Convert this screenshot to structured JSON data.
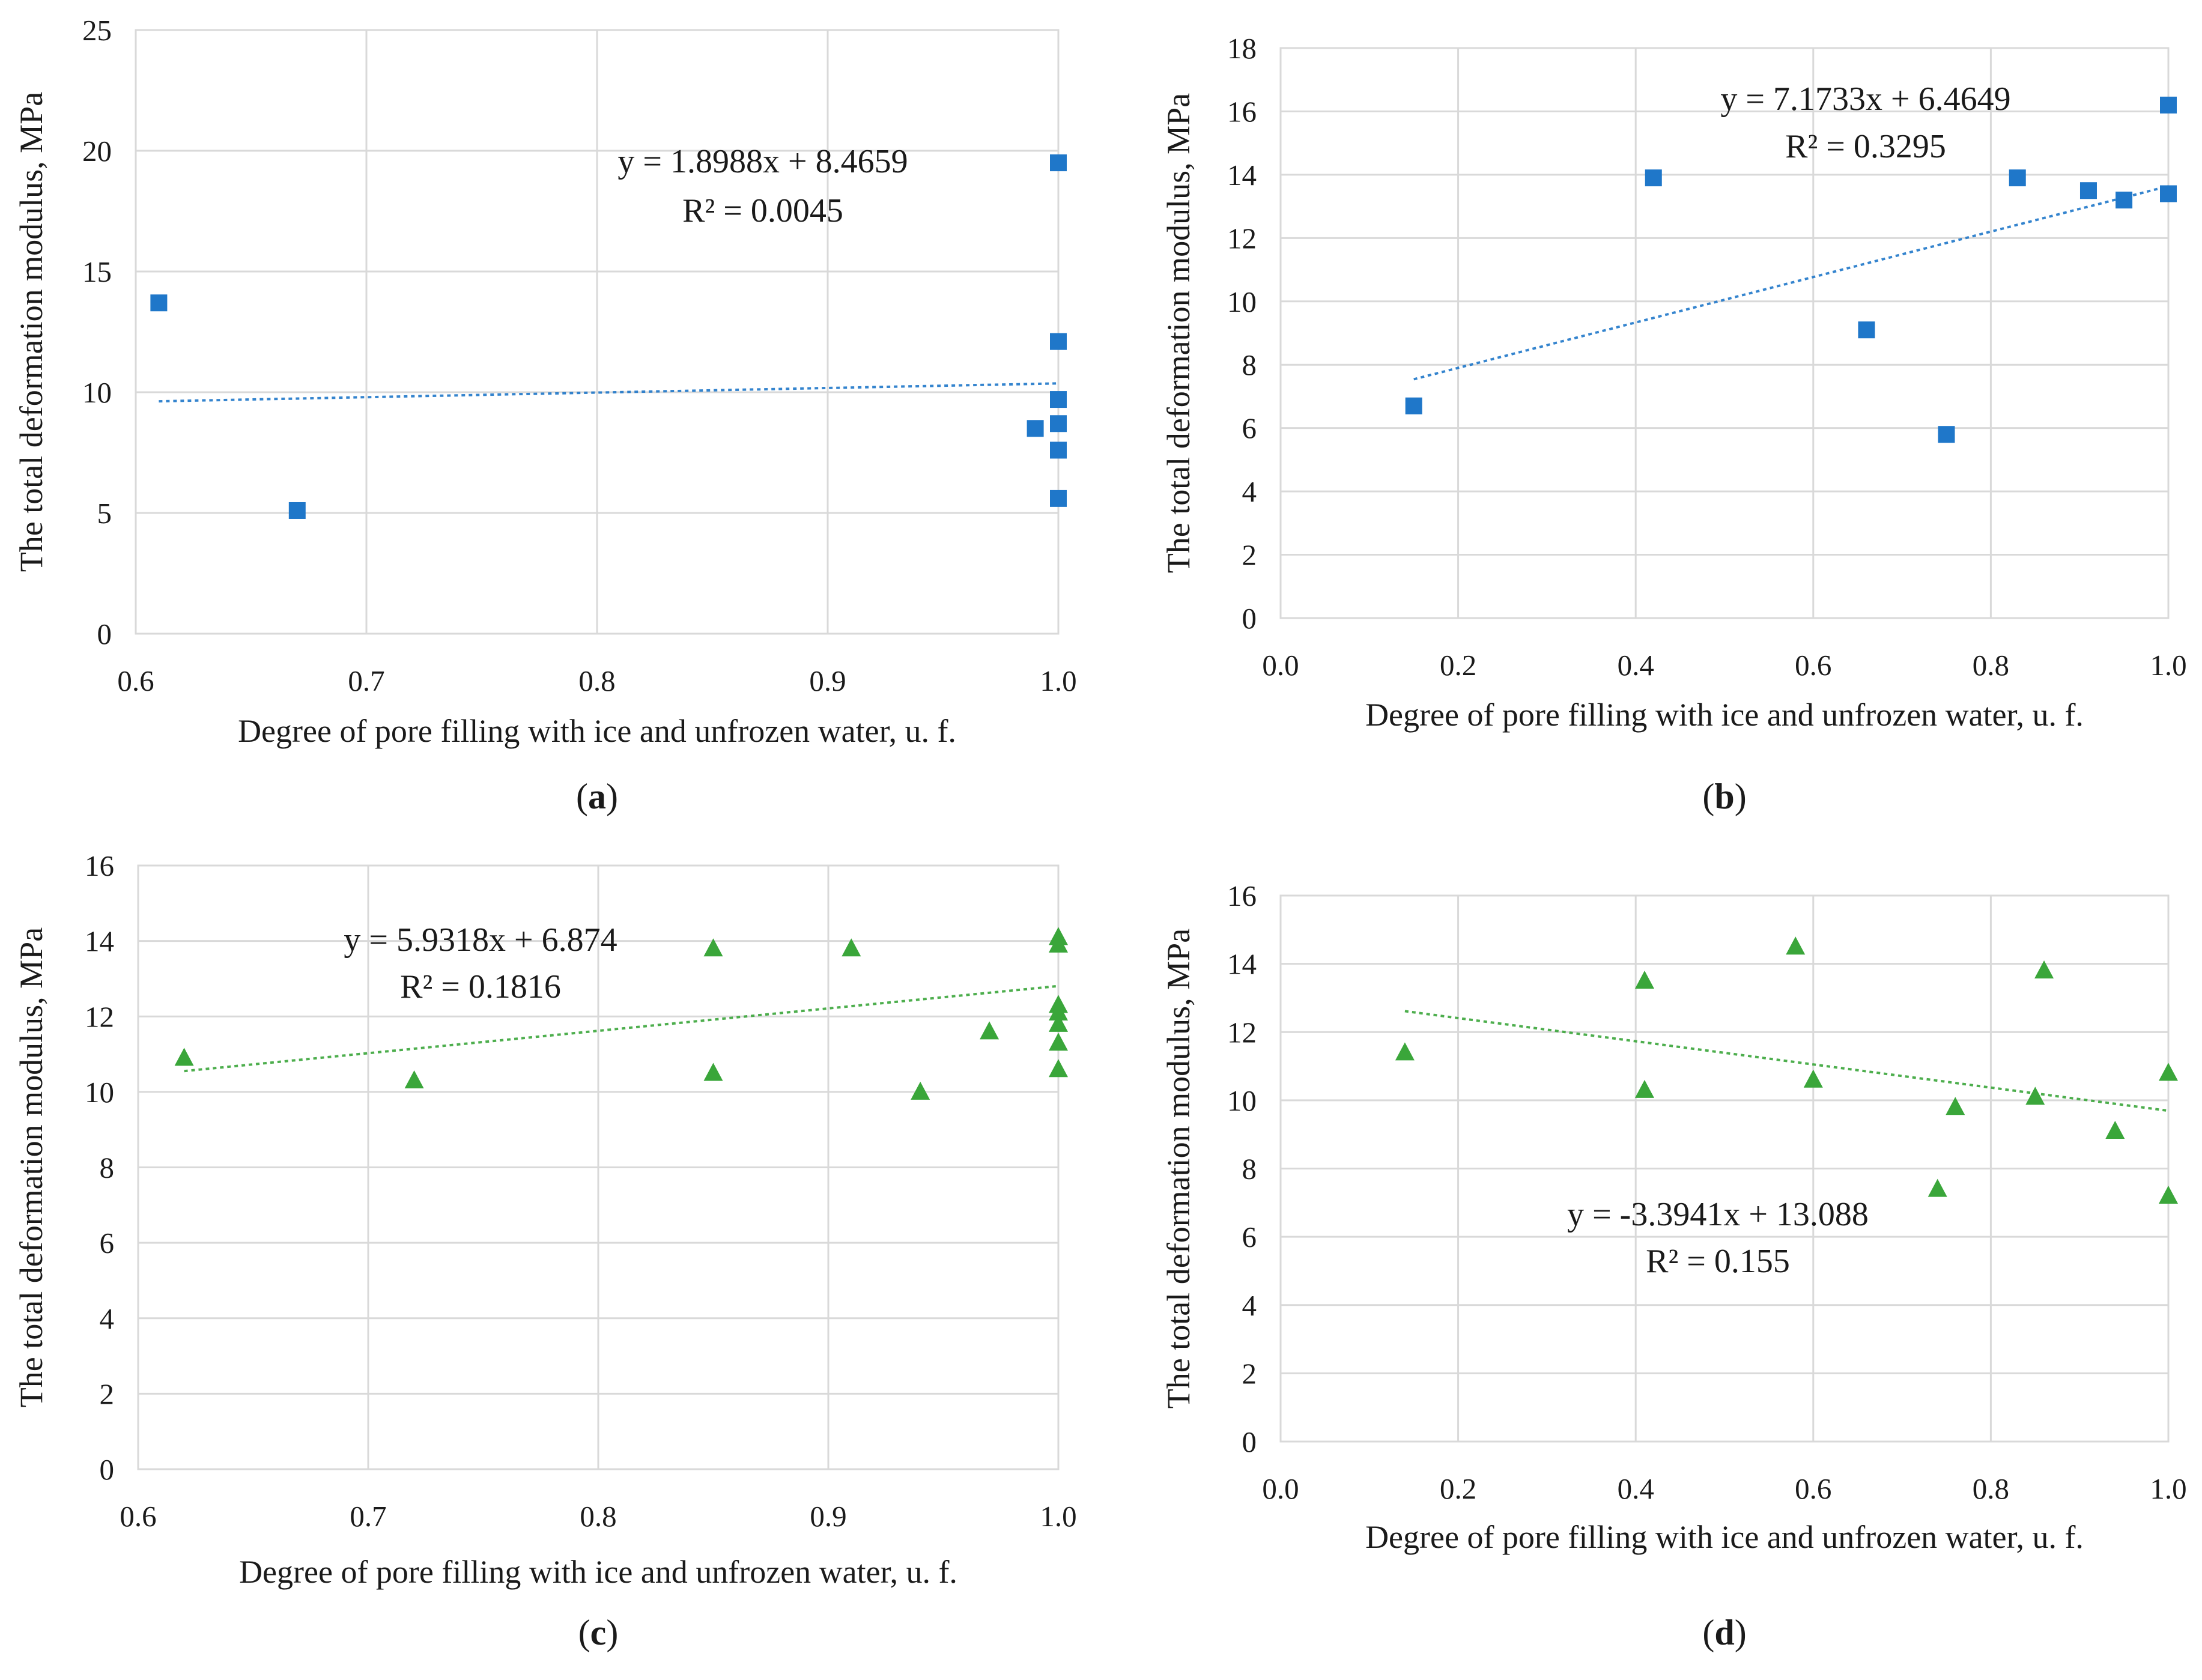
{
  "figure": {
    "description_free": true
  },
  "chart_data": [
    {
      "id": "a",
      "type": "scatter",
      "panel_label": "(a)",
      "panel_letter": "a",
      "xlabel": "Degree of pore filling with ice and unfrozen water, u. f.",
      "ylabel": "The total deformation modulus, MPa",
      "xlim": [
        0.6,
        1.0
      ],
      "ylim": [
        0,
        25
      ],
      "xticks": [
        0.6,
        0.7,
        0.8,
        0.9,
        1.0
      ],
      "xtick_labels": [
        "0.6",
        "0.7",
        "0.8",
        "0.9",
        "1.0"
      ],
      "yticks": [
        0,
        5,
        10,
        15,
        20,
        25
      ],
      "ytick_labels": [
        "0",
        "5",
        "10",
        "15",
        "20",
        "25"
      ],
      "marker": "square",
      "color": "#1f77c9",
      "x": [
        0.61,
        0.67,
        0.99,
        1.0,
        1.0,
        1.0,
        1.0,
        1.0,
        1.0
      ],
      "y": [
        13.7,
        5.1,
        8.5,
        19.5,
        12.1,
        9.7,
        8.7,
        7.6,
        5.6
      ],
      "trendline": {
        "slope": 1.8988,
        "intercept": 8.4659,
        "x_range": [
          0.61,
          1.0
        ]
      },
      "equation_text": "y = 1.8988x + 8.4659",
      "r2_text": "R² = 0.0045"
    },
    {
      "id": "b",
      "type": "scatter",
      "panel_label": "(b)",
      "panel_letter": "b",
      "xlabel": "Degree of pore filling with ice and unfrozen water, u. f.",
      "ylabel": "The total deformation modulus, MPa",
      "xlim": [
        0.0,
        1.0
      ],
      "ylim": [
        0,
        18
      ],
      "xticks": [
        0.0,
        0.2,
        0.4,
        0.6,
        0.8,
        1.0
      ],
      "xtick_labels": [
        "0.0",
        "0.2",
        "0.4",
        "0.6",
        "0.8",
        "1.0"
      ],
      "yticks": [
        0,
        2,
        4,
        6,
        8,
        10,
        12,
        14,
        16,
        18
      ],
      "ytick_labels": [
        "0",
        "2",
        "4",
        "6",
        "8",
        "10",
        "12",
        "14",
        "16",
        "18"
      ],
      "marker": "square",
      "color": "#1f77c9",
      "x": [
        0.15,
        0.42,
        0.66,
        0.75,
        0.83,
        0.91,
        0.95,
        1.0,
        1.0
      ],
      "y": [
        6.7,
        13.9,
        9.1,
        5.8,
        13.9,
        13.5,
        13.2,
        16.2,
        13.4
      ],
      "trendline": {
        "slope": 7.1733,
        "intercept": 6.4649,
        "x_range": [
          0.15,
          1.0
        ]
      },
      "equation_text": "y = 7.1733x + 6.4649",
      "r2_text": "R² = 0.3295"
    },
    {
      "id": "c",
      "type": "scatter",
      "panel_label": "(c)",
      "panel_letter": "c",
      "xlabel": "Degree of pore filling with ice and unfrozen water, u. f.",
      "ylabel": "The total deformation modulus, MPa",
      "xlim": [
        0.6,
        1.0
      ],
      "ylim": [
        0,
        16
      ],
      "xticks": [
        0.6,
        0.7,
        0.8,
        0.9,
        1.0
      ],
      "xtick_labels": [
        "0.6",
        "0.7",
        "0.8",
        "0.9",
        "1.0"
      ],
      "yticks": [
        0,
        2,
        4,
        6,
        8,
        10,
        12,
        14,
        16
      ],
      "ytick_labels": [
        "0",
        "2",
        "4",
        "6",
        "8",
        "10",
        "12",
        "14",
        "16"
      ],
      "marker": "triangle",
      "color": "#3aa63a",
      "x": [
        0.62,
        0.72,
        0.85,
        0.85,
        0.91,
        0.94,
        0.97,
        1.0,
        1.0,
        1.0,
        1.0,
        1.0,
        1.0,
        1.0
      ],
      "y": [
        10.9,
        10.3,
        13.8,
        10.5,
        13.8,
        10.0,
        11.6,
        14.1,
        13.9,
        12.3,
        11.8,
        11.3,
        10.6,
        12.1
      ],
      "trendline": {
        "slope": 5.9318,
        "intercept": 6.874,
        "x_range": [
          0.62,
          1.0
        ]
      },
      "equation_text": "y = 5.9318x + 6.874",
      "r2_text": "R² = 0.1816"
    },
    {
      "id": "d",
      "type": "scatter",
      "panel_label": "(d)",
      "panel_letter": "d",
      "xlabel": "Degree of pore filling with ice and unfrozen water, u. f.",
      "ylabel": "The total deformation modulus, MPa",
      "xlim": [
        0.0,
        1.0
      ],
      "ylim": [
        0,
        16
      ],
      "xticks": [
        0.0,
        0.2,
        0.4,
        0.6,
        0.8,
        1.0
      ],
      "xtick_labels": [
        "0.0",
        "0.2",
        "0.4",
        "0.6",
        "0.8",
        "1.0"
      ],
      "yticks": [
        0,
        2,
        4,
        6,
        8,
        10,
        12,
        14,
        16
      ],
      "ytick_labels": [
        "0",
        "2",
        "4",
        "6",
        "8",
        "10",
        "12",
        "14",
        "16"
      ],
      "marker": "triangle",
      "color": "#3aa63a",
      "x": [
        0.14,
        0.41,
        0.41,
        0.58,
        0.6,
        0.74,
        0.76,
        0.85,
        0.86,
        0.94,
        1.0,
        1.0
      ],
      "y": [
        11.4,
        13.5,
        10.3,
        14.5,
        10.6,
        7.4,
        9.8,
        10.1,
        13.8,
        9.1,
        10.8,
        7.2
      ],
      "trendline": {
        "slope": -3.3941,
        "intercept": 13.088,
        "x_range": [
          0.14,
          1.0
        ]
      },
      "equation_text": "y = -3.3941x + 13.088",
      "r2_text": "R² = 0.155"
    }
  ]
}
